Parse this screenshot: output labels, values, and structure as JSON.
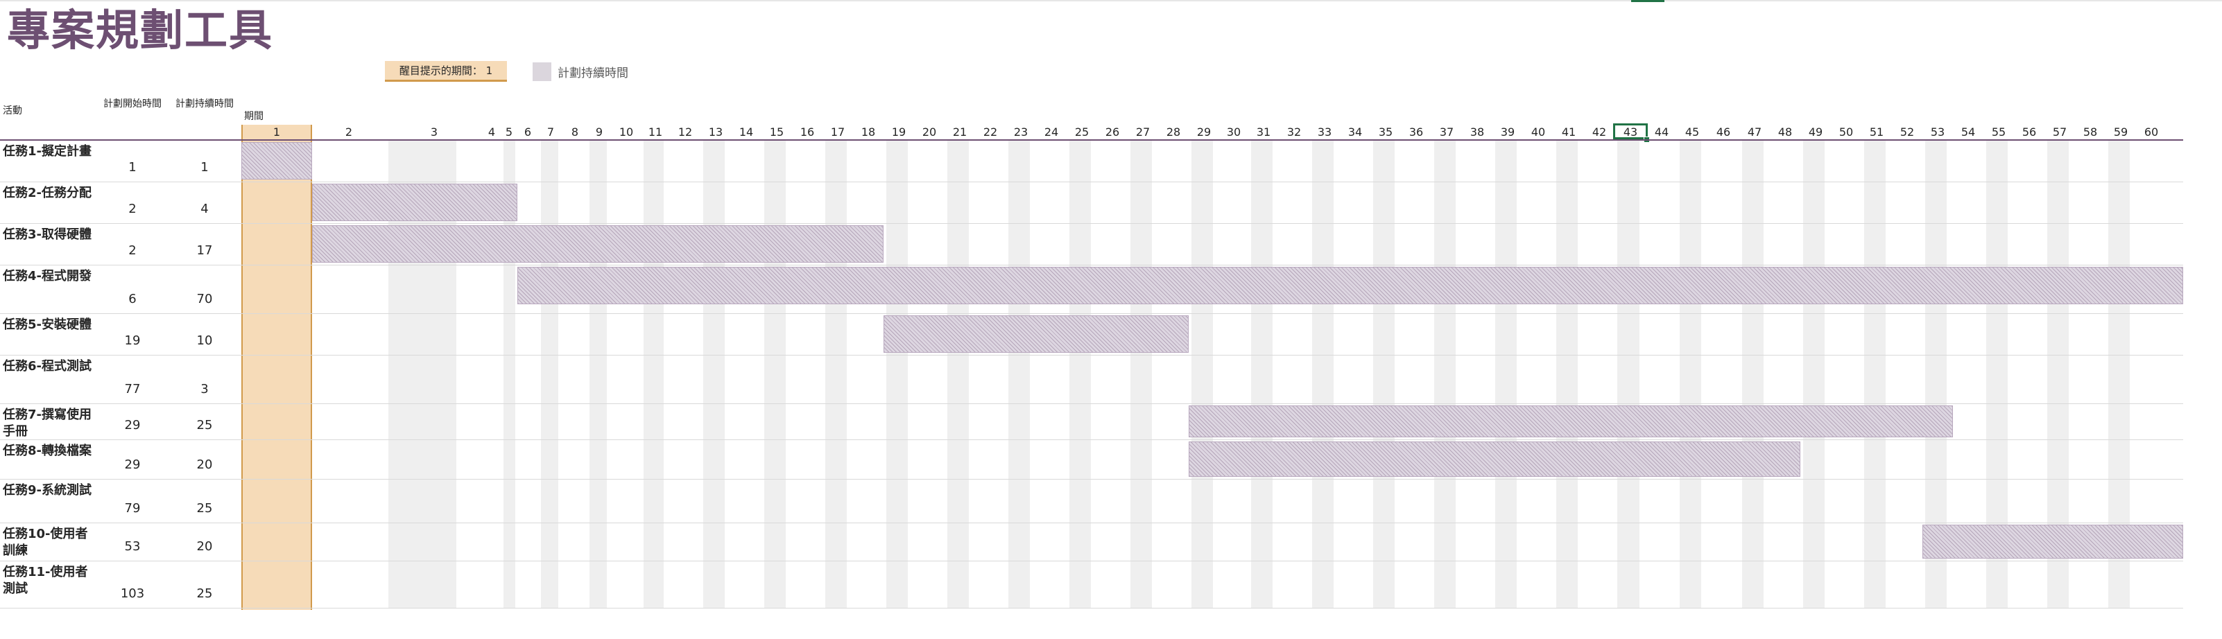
{
  "title": "專案規劃工具",
  "highlight_label": "醒目提示的期間：  1",
  "highlight_period": 1,
  "legend": {
    "label": "計劃持續時間"
  },
  "columns": {
    "activity": "活動",
    "plan_start": "計劃開始時間",
    "plan_duration": "計劃持續時間",
    "period": "期間"
  },
  "selected_period": 43,
  "period_count": 60,
  "tasks": [
    {
      "name": "任務1-擬定計畫",
      "start": "1",
      "duration": "1"
    },
    {
      "name": "任務2-任務分配",
      "start": "2",
      "duration": "4"
    },
    {
      "name": "任務3-取得硬體",
      "start": "2",
      "duration": "17"
    },
    {
      "name": "任務4-程式開發",
      "start": "6",
      "duration": "70"
    },
    {
      "name": "任務5-安裝硬體",
      "start": "19",
      "duration": "10"
    },
    {
      "name": "任務6-程式測試",
      "start": "77",
      "duration": "3"
    },
    {
      "name": "任務7-撰寫使用手冊",
      "start": "29",
      "duration": "25"
    },
    {
      "name": "任務8-轉換檔案",
      "start": "29",
      "duration": "20"
    },
    {
      "name": "任務9-系統測試",
      "start": "79",
      "duration": "25"
    },
    {
      "name": "任務10-使用者訓練",
      "start": "53",
      "duration": "20"
    },
    {
      "name": "任務11-使用者測試",
      "start": "103",
      "duration": "25"
    }
  ],
  "colors": {
    "accent": "#6d4f72",
    "highlight": "#f6dbb8",
    "highlight_border": "#d19a4c",
    "bar": "#ddd6e1",
    "selection": "#217346"
  }
}
